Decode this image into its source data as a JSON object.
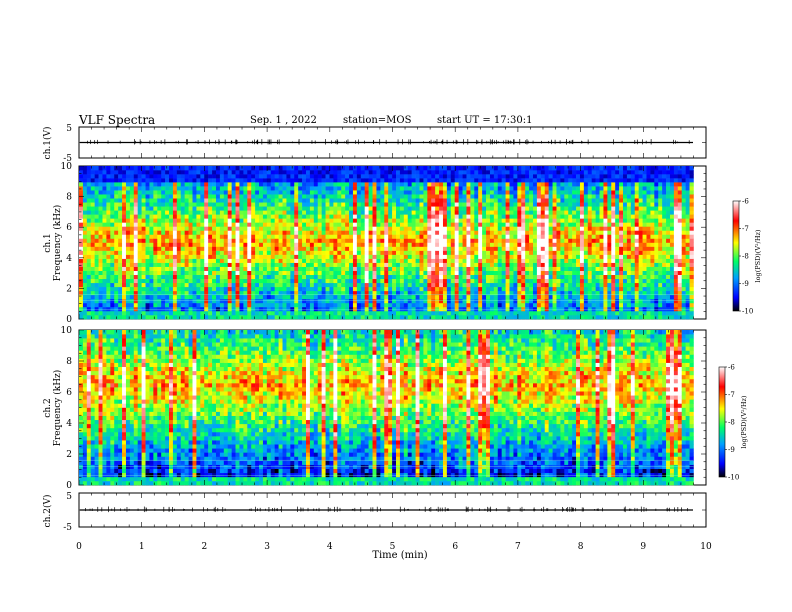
{
  "header": {
    "title": "VLF Spectra",
    "date": "Sep. 1 , 2022",
    "station": "station=MOS",
    "start": "start UT =  17:30:1"
  },
  "chart_data": [
    {
      "type": "line",
      "panel": "ch1-waveform",
      "ylabel": "ch.1(V)",
      "ylim": [
        -5,
        5
      ],
      "ytick_labels": [
        "5",
        "-5"
      ],
      "trace_level": 0,
      "color": "#000000"
    },
    {
      "type": "heatmap",
      "panel": "ch1-spectrogram",
      "ylabel": "ch.1\nFrequency (kHz)",
      "ylim": [
        0,
        10
      ],
      "ytick_labels": [
        "0",
        "2",
        "4",
        "6",
        "8",
        "10"
      ],
      "band_center_khz": 5.0,
      "band_low_khz": 0.4,
      "band_high_khz": 9.0,
      "colorbar": {
        "label": "log(PSD)(V²/Hz)",
        "range": [
          -10,
          -6
        ],
        "tick_labels": [
          "-6",
          "-7",
          "-8",
          "-9",
          "-10"
        ]
      }
    },
    {
      "type": "heatmap",
      "panel": "ch2-spectrogram",
      "ylabel": "ch.2\nFrequency (kHz)",
      "ylim": [
        0,
        10
      ],
      "ytick_labels": [
        "0",
        "2",
        "4",
        "6",
        "8",
        "10"
      ],
      "band_center_khz": 6.5,
      "band_low_khz": 0.4,
      "band_high_khz": 10,
      "colorbar": {
        "label": "log(PSD)(V²/Hz)",
        "range": [
          -10,
          -6
        ],
        "tick_labels": [
          "-6",
          "-7",
          "-8",
          "-9",
          "-10"
        ]
      }
    },
    {
      "type": "line",
      "panel": "ch2-waveform",
      "ylabel": "ch.2(V)",
      "ylim": [
        -5,
        5
      ],
      "ytick_labels": [
        "5",
        "-5"
      ],
      "trace_level": 0,
      "color": "#000000"
    }
  ],
  "x_axis": {
    "xlabel": "Time (min)",
    "xlim": [
      0,
      10
    ],
    "tick_labels": [
      "0",
      "1",
      "2",
      "3",
      "4",
      "5",
      "6",
      "7",
      "8",
      "9",
      "10"
    ]
  },
  "colors": {
    "low": "#000000",
    "mid_low": "#0000ff",
    "mid": "#00ff66",
    "mid_high": "#ffff00",
    "high": "#ff0000",
    "top": "#ffffff"
  }
}
